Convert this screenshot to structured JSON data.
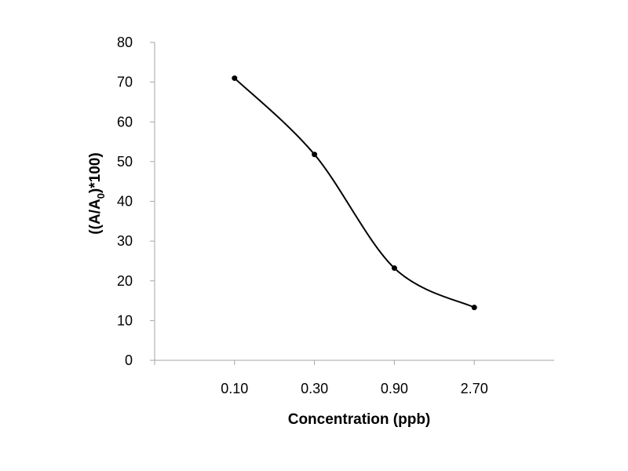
{
  "chart_data": {
    "type": "line",
    "title": "",
    "xlabel": "Concentration (ppb)",
    "ylabel": {
      "prefix": "((A/A",
      "subscript": "0",
      "suffix": ")*100)"
    },
    "categories": [
      "0.10",
      "0.30",
      "0.90",
      "2.70"
    ],
    "series": [
      {
        "values": [
          71,
          51.8,
          23.2,
          13.3
        ],
        "color": "#000000",
        "marker": "circle",
        "smooth": true
      }
    ],
    "ylim": [
      0,
      80
    ],
    "yticks": [
      "0",
      "10",
      "20",
      "30",
      "40",
      "50",
      "60",
      "70",
      "80"
    ],
    "grid": false,
    "legend": "none",
    "axis_color": "#a6a6a6"
  }
}
